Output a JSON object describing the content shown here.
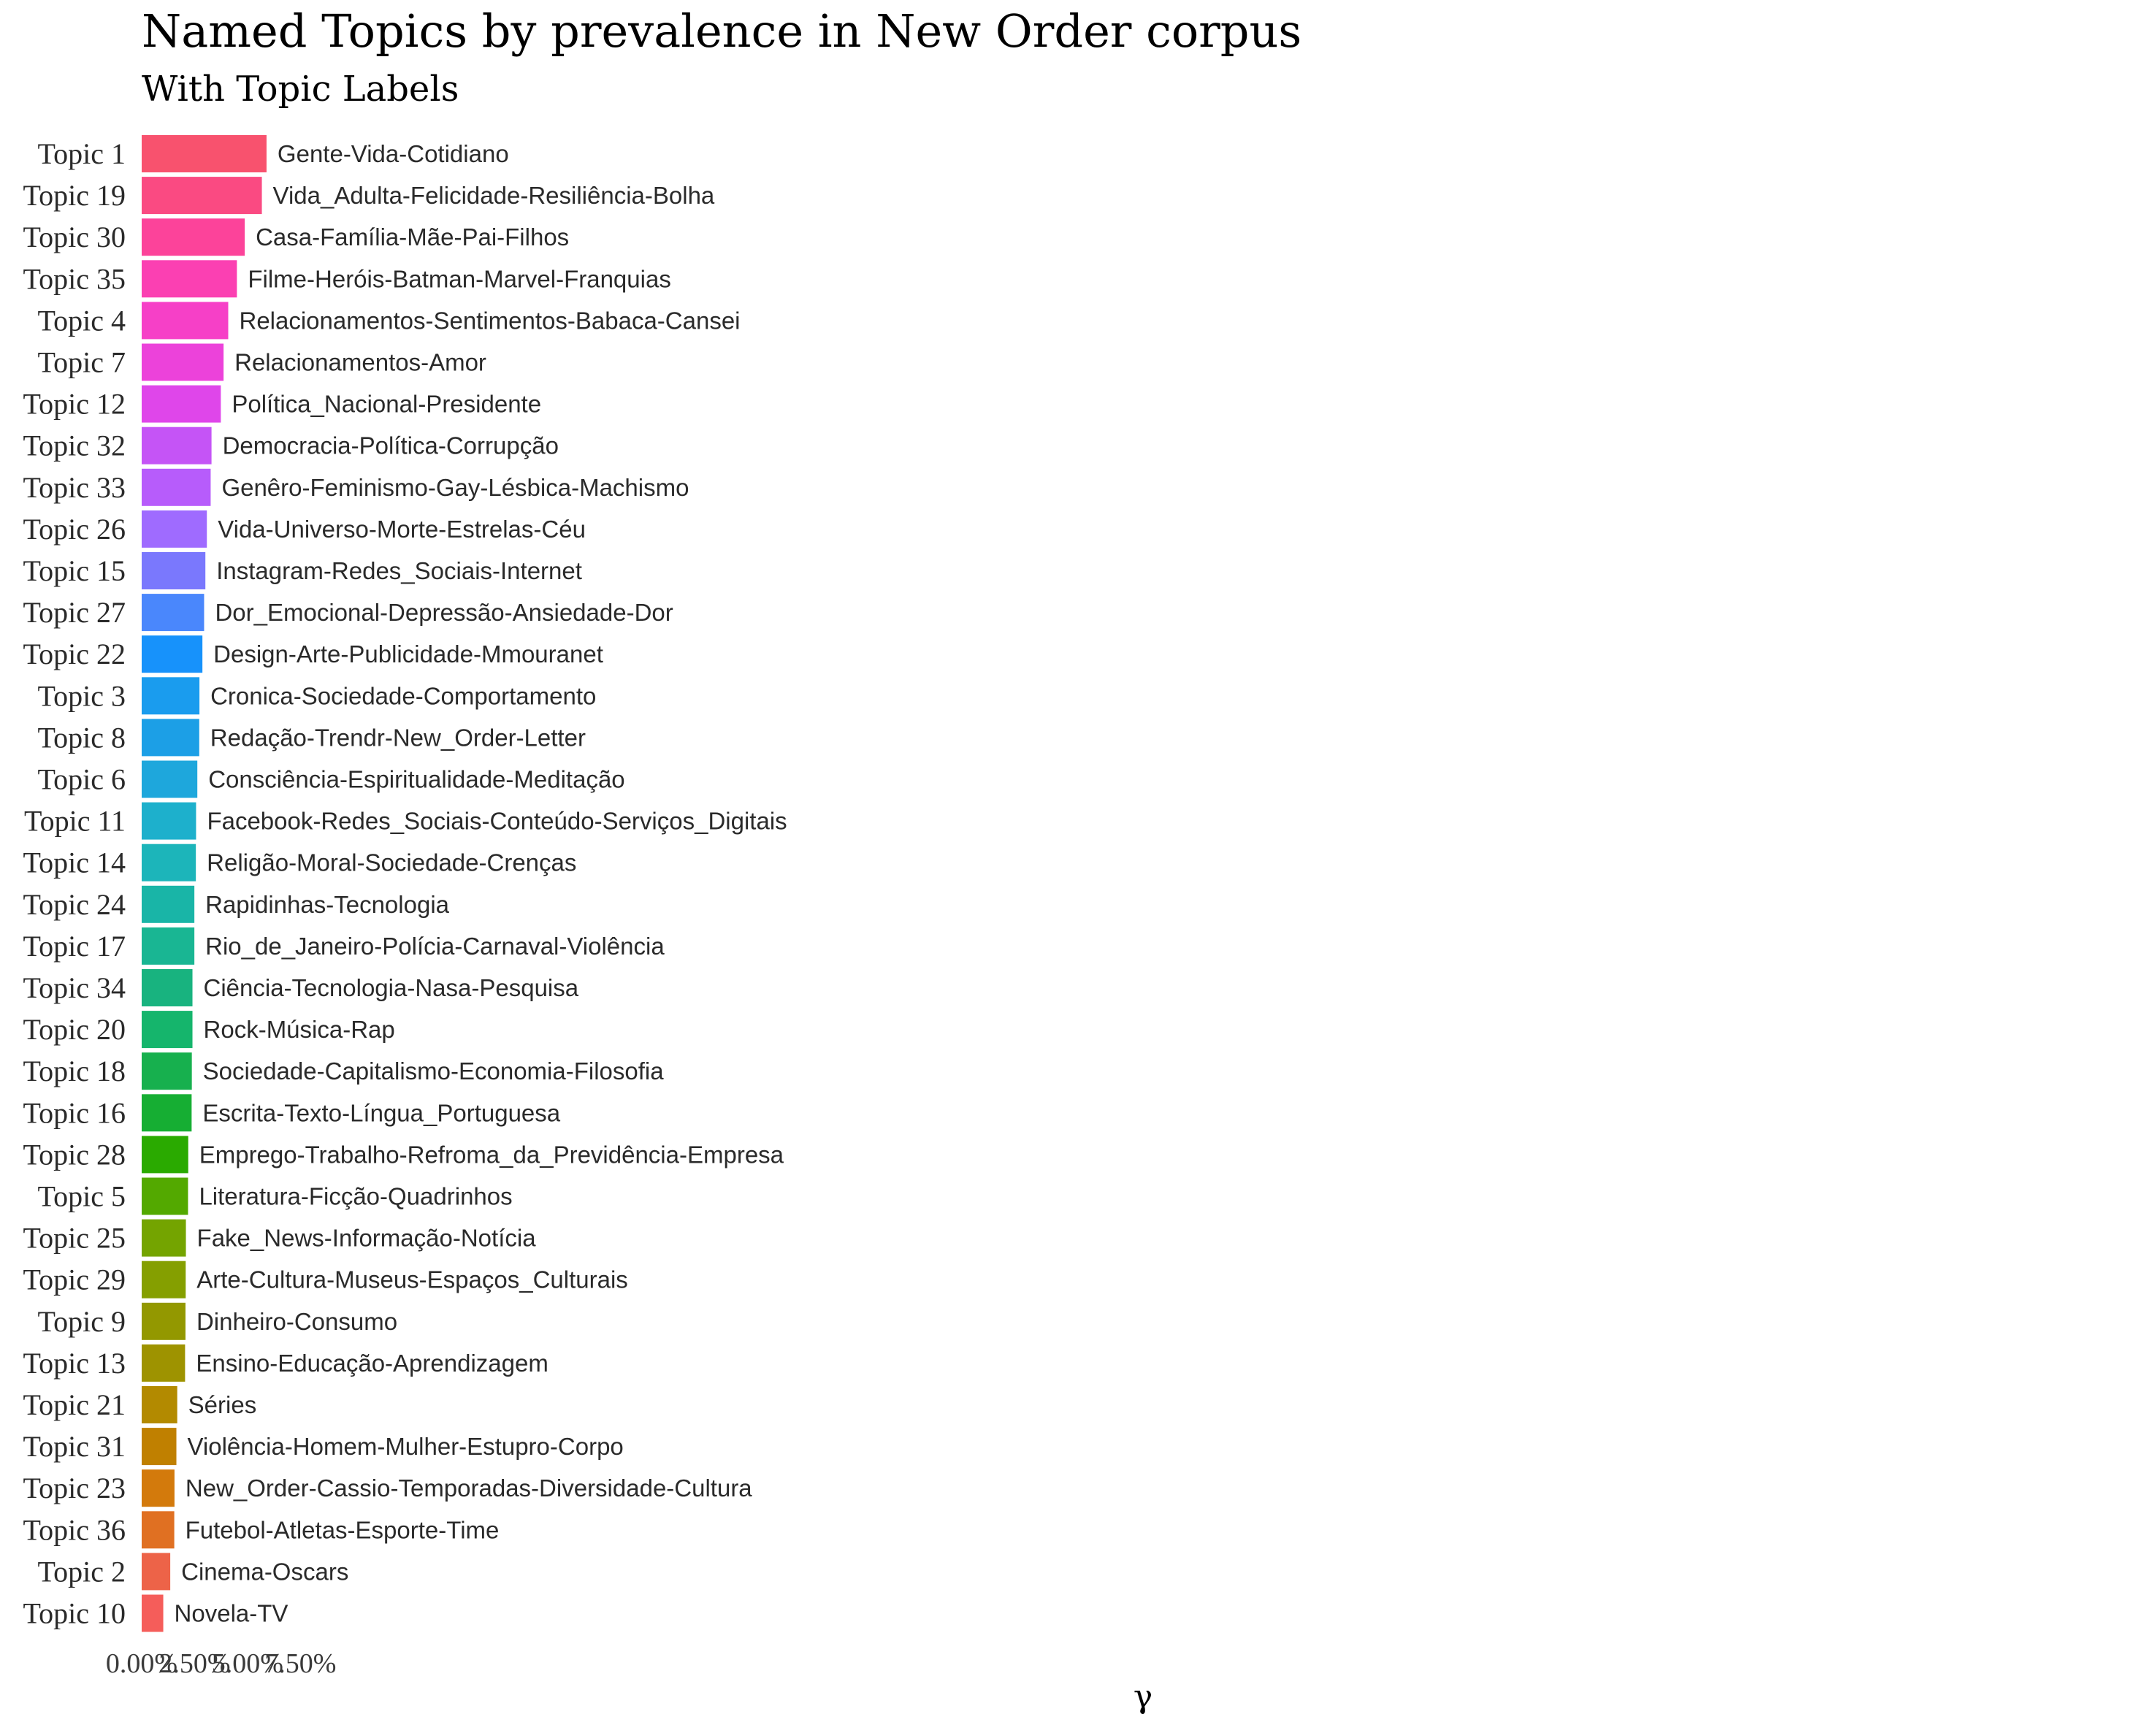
{
  "chart_data": {
    "type": "bar",
    "orientation": "horizontal",
    "title": "Named Topics by prevalence in New Order corpus",
    "subtitle": "With Topic Labels",
    "xlabel": "γ",
    "ylabel": "",
    "xlim": [
      0,
      0.09
    ],
    "x_ticks": [
      {
        "value": 0.0,
        "label": "0.00%"
      },
      {
        "value": 0.025,
        "label": "2.50%"
      },
      {
        "value": 0.05,
        "label": "5.00%"
      },
      {
        "value": 0.075,
        "label": "7.50%"
      }
    ],
    "grid": false,
    "legend": "none",
    "categories": [
      "Topic 1",
      "Topic 19",
      "Topic 30",
      "Topic 35",
      "Topic 4",
      "Topic 7",
      "Topic 12",
      "Topic 32",
      "Topic 33",
      "Topic 26",
      "Topic 15",
      "Topic 27",
      "Topic 22",
      "Topic 3",
      "Topic 8",
      "Topic 6",
      "Topic 11",
      "Topic 14",
      "Topic 24",
      "Topic 17",
      "Topic 34",
      "Topic 20",
      "Topic 18",
      "Topic 16",
      "Topic 28",
      "Topic 5",
      "Topic 25",
      "Topic 29",
      "Topic 9",
      "Topic 13",
      "Topic 21",
      "Topic 31",
      "Topic 23",
      "Topic 36",
      "Topic 2",
      "Topic 10"
    ],
    "values": [
      0.059,
      0.0568,
      0.0487,
      0.045,
      0.0409,
      0.0387,
      0.0374,
      0.033,
      0.0326,
      0.0308,
      0.0301,
      0.0295,
      0.0287,
      0.0273,
      0.0272,
      0.0263,
      0.0257,
      0.0256,
      0.0249,
      0.0249,
      0.024,
      0.024,
      0.0237,
      0.0236,
      0.022,
      0.0219,
      0.0209,
      0.0208,
      0.0207,
      0.0205,
      0.0168,
      0.0164,
      0.0155,
      0.0154,
      0.0135,
      0.0102
    ],
    "labels": [
      "Gente-Vida-Cotidiano",
      "Vida_Adulta-Felicidade-Resiliência-Bolha",
      "Casa-Família-Mãe-Pai-Filhos",
      "Filme-Heróis-Batman-Marvel-Franquias",
      "Relacionamentos-Sentimentos-Babaca-Cansei",
      "Relacionamentos-Amor",
      "Política_Nacional-Presidente",
      "Democracia-Política-Corrupção",
      "Genêro-Feminismo-Gay-Lésbica-Machismo",
      "Vida-Universo-Morte-Estrelas-Céu",
      "Instagram-Redes_Sociais-Internet",
      "Dor_Emocional-Depressão-Ansiedade-Dor",
      "Design-Arte-Publicidade-Mmouranet",
      "Cronica-Sociedade-Comportamento",
      "Redação-Trendr-New_Order-Letter",
      "Consciência-Espiritualidade-Meditação",
      "Facebook-Redes_Sociais-Conteúdo-Serviços_Digitais",
      "Religão-Moral-Sociedade-Crenças",
      "Rapidinhas-Tecnologia",
      "Rio_de_Janeiro-Polícia-Carnaval-Violência",
      "Ciência-Tecnologia-Nasa-Pesquisa",
      "Rock-Música-Rap",
      "Sociedade-Capitalismo-Economia-Filosofia",
      "Escrita-Texto-Língua_Portuguesa",
      "Emprego-Trabalho-Refroma_da_Previdência-Empresa",
      "Literatura-Ficção-Quadrinhos",
      "Fake_News-Informação-Notícia",
      "Arte-Cultura-Museus-Espaços_Culturais",
      "Dinheiro-Consumo",
      "Ensino-Educação-Aprendizagem",
      "Séries",
      "Violência-Homem-Mulher-Estupro-Corpo",
      "New_Order-Cassio-Temporadas-Diversidade-Cultura",
      "Futebol-Atletas-Esporte-Time",
      "Cinema-Oscars",
      "Novela-TV"
    ],
    "colors": [
      "#F8526E",
      "#FA4A82",
      "#FC439A",
      "#FB40B2",
      "#F640C7",
      "#EC42DA",
      "#DF46EA",
      "#C554F6",
      "#B75CFB",
      "#9F6BFF",
      "#7A78FD",
      "#4A87FC",
      "#1792FB",
      "#1A9CEE",
      "#1C9FE6",
      "#1EA7DC",
      "#1DB0CC",
      "#1CB5BA",
      "#19B5A7",
      "#19B693",
      "#18B37F",
      "#15B56C",
      "#17B04E",
      "#16AE33",
      "#2AAA00",
      "#53A900",
      "#74A400",
      "#859F00",
      "#939800",
      "#9E9300",
      "#B38A00",
      "#C08000",
      "#D37A0C",
      "#E07022",
      "#ED6348",
      "#F55D5A"
    ]
  }
}
